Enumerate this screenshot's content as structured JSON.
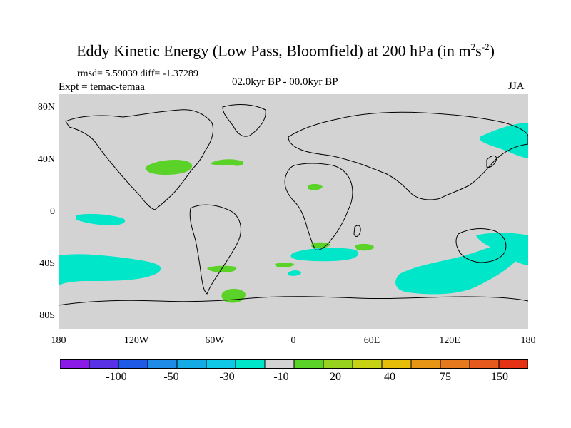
{
  "title": {
    "main": "Eddy Kinetic Energy (Low Pass, Bloomfield) at 200 hPa (in m",
    "sup1": "2",
    "mid": "s",
    "sup2": "-2",
    "end": ")"
  },
  "stats": "rmsd= 5.59039 diff= -1.37289",
  "expt": "Expt = temac-temaa",
  "period": "02.0kyr BP - 00.0kyr BP",
  "season": "JJA",
  "map": {
    "background": "#d3d3d3",
    "lat_labels": [
      "80N",
      "40N",
      "0",
      "40S",
      "80S"
    ],
    "lon_labels": [
      "180",
      "120W",
      "60W",
      "0",
      "60E",
      "120E",
      "180"
    ],
    "cyan": "#00e6c8",
    "green": "#5ad228"
  },
  "colorbar": {
    "colors": [
      "#8c1ae6",
      "#5a32e6",
      "#1e5ae6",
      "#1e8ce6",
      "#14aae6",
      "#0fc8e6",
      "#00e6c8",
      "#d3d3d3",
      "#5ad228",
      "#96d21e",
      "#c8d214",
      "#e6be0a",
      "#e69614",
      "#e6781e",
      "#e65a1e",
      "#e63214"
    ],
    "labels": [
      "-100",
      "-50",
      "-30",
      "-10",
      "20",
      "40",
      "75",
      "150"
    ]
  }
}
